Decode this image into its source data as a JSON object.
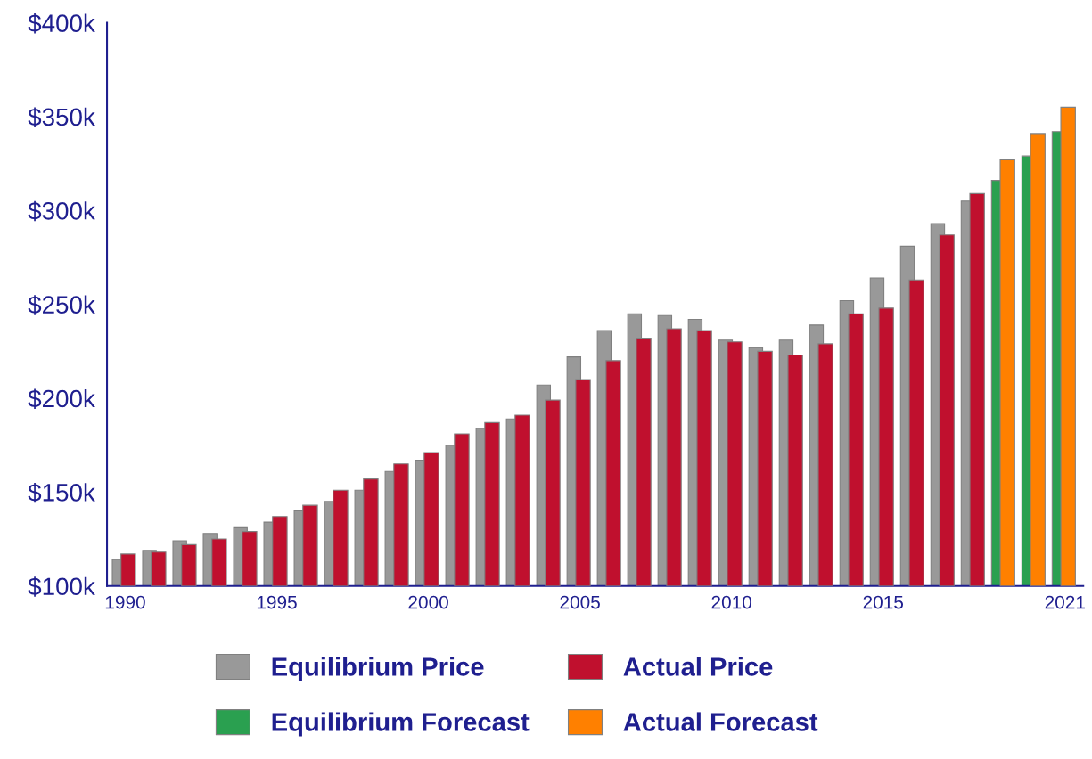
{
  "chart_data": {
    "type": "bar",
    "categories": [
      "1990",
      null,
      null,
      null,
      null,
      "1995",
      null,
      null,
      null,
      null,
      "2000",
      null,
      null,
      null,
      null,
      "2005",
      null,
      null,
      null,
      null,
      "2010",
      null,
      null,
      null,
      null,
      "2015",
      null,
      null,
      null,
      null,
      null,
      "2021"
    ],
    "series": [
      {
        "name": "Equilibrium Price",
        "color": "#999999",
        "values": [
          114,
          119,
          124,
          128,
          131,
          134,
          140,
          145,
          151,
          161,
          167,
          175,
          184,
          189,
          207,
          222,
          236,
          245,
          244,
          242,
          231,
          227,
          231,
          239,
          252,
          264,
          281,
          293,
          305,
          null,
          null,
          null
        ]
      },
      {
        "name": "Actual Price",
        "color": "#c0102e",
        "values": [
          117,
          118,
          122,
          125,
          129,
          137,
          143,
          151,
          157,
          165,
          171,
          181,
          187,
          191,
          199,
          210,
          220,
          232,
          237,
          236,
          230,
          225,
          223,
          229,
          245,
          248,
          263,
          287,
          309,
          null,
          null,
          null
        ]
      },
      {
        "name": "Equilibrium Forecast",
        "color": "#2aa050",
        "values": [
          null,
          null,
          null,
          null,
          null,
          null,
          null,
          null,
          null,
          null,
          null,
          null,
          null,
          null,
          null,
          null,
          null,
          null,
          null,
          null,
          null,
          null,
          null,
          null,
          null,
          null,
          null,
          null,
          null,
          316,
          329,
          342
        ]
      },
      {
        "name": "Actual Forecast",
        "color": "#ff8000",
        "values": [
          null,
          null,
          null,
          null,
          null,
          null,
          null,
          null,
          null,
          null,
          null,
          null,
          null,
          null,
          null,
          null,
          null,
          null,
          null,
          null,
          null,
          null,
          null,
          null,
          null,
          null,
          null,
          null,
          null,
          327,
          341,
          355
        ]
      }
    ],
    "ylim": [
      100,
      400
    ],
    "yticks": [
      {
        "value": 100,
        "label": "$100k"
      },
      {
        "value": 150,
        "label": "$150k"
      },
      {
        "value": 200,
        "label": "$200k"
      },
      {
        "value": 250,
        "label": "$250k"
      },
      {
        "value": 300,
        "label": "$300k"
      },
      {
        "value": 350,
        "label": "$350k"
      },
      {
        "value": 400,
        "label": "$400k"
      }
    ],
    "grid": false,
    "legend": "bottom"
  }
}
